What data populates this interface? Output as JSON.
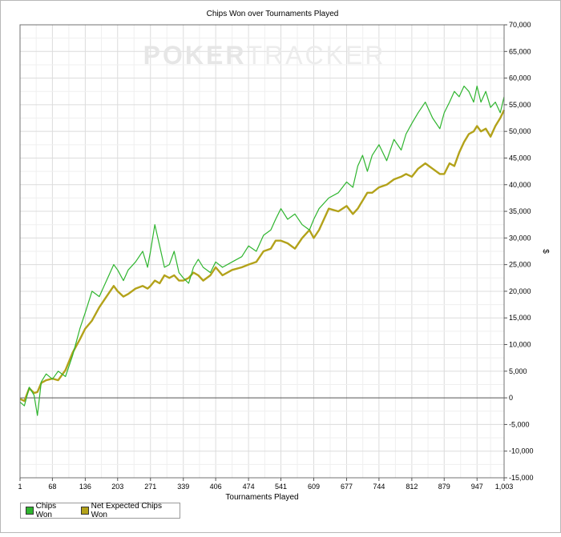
{
  "chart_data": {
    "type": "line",
    "title": "Chips Won over Tournaments Played",
    "xlabel": "Tournaments Played",
    "ylabel": "$",
    "watermark": {
      "part1": "POKER",
      "part2": "TRACKER"
    },
    "xlim": [
      1,
      1003
    ],
    "ylim": [
      -15000,
      70000
    ],
    "x_ticks": [
      1,
      68,
      136,
      203,
      271,
      339,
      406,
      474,
      541,
      609,
      677,
      744,
      812,
      879,
      947,
      1003
    ],
    "x_tick_labels": [
      "1",
      "68",
      "136",
      "203",
      "271",
      "339",
      "406",
      "474",
      "541",
      "609",
      "677",
      "744",
      "812",
      "879",
      "947",
      "1,003"
    ],
    "y_ticks": [
      -15000,
      -10000,
      -5000,
      0,
      5000,
      10000,
      15000,
      20000,
      25000,
      30000,
      35000,
      40000,
      45000,
      50000,
      55000,
      60000,
      65000,
      70000
    ],
    "y_tick_labels": [
      "-15,000",
      "-10,000",
      "-5,000",
      "0",
      "5,000",
      "10,000",
      "15,000",
      "20,000",
      "25,000",
      "30,000",
      "35,000",
      "40,000",
      "45,000",
      "50,000",
      "55,000",
      "60,000",
      "65,000",
      "70,000"
    ],
    "grid": true,
    "legend_position": "bottom-left",
    "series": [
      {
        "name": "Chips Won",
        "color": "#2fb52f",
        "x": [
          1,
          10,
          20,
          30,
          37,
          45,
          55,
          68,
          80,
          95,
          110,
          125,
          136,
          150,
          165,
          180,
          195,
          203,
          215,
          225,
          240,
          255,
          265,
          271,
          280,
          290,
          300,
          310,
          320,
          330,
          339,
          350,
          360,
          370,
          380,
          395,
          406,
          420,
          440,
          460,
          474,
          490,
          505,
          520,
          530,
          541,
          555,
          570,
          585,
          600,
          609,
          620,
          640,
          660,
          677,
          690,
          700,
          710,
          720,
          730,
          744,
          760,
          775,
          790,
          800,
          812,
          825,
          840,
          855,
          870,
          879,
          890,
          900,
          910,
          920,
          930,
          940,
          947,
          955,
          965,
          975,
          985,
          995,
          1003
        ],
        "y": [
          -800,
          -1500,
          2000,
          500,
          -3300,
          3000,
          4500,
          3500,
          5000,
          4000,
          8000,
          13000,
          16000,
          20000,
          19000,
          22000,
          25000,
          24000,
          22000,
          24000,
          25500,
          27500,
          24500,
          27500,
          32500,
          28500,
          24500,
          25000,
          27500,
          23500,
          22500,
          21500,
          24500,
          26000,
          24500,
          23500,
          25500,
          24500,
          25500,
          26500,
          28500,
          27500,
          30500,
          31500,
          33500,
          35500,
          33500,
          34500,
          32500,
          31500,
          33500,
          35500,
          37500,
          38500,
          40500,
          39500,
          43500,
          45500,
          42500,
          45500,
          47500,
          44500,
          48500,
          46500,
          49500,
          51500,
          53500,
          55500,
          52500,
          50500,
          53500,
          55500,
          57500,
          56500,
          58500,
          57500,
          55500,
          58500,
          55500,
          57500,
          54500,
          55500,
          53500,
          56500
        ]
      },
      {
        "name": "Net Expected Chips Won",
        "color": "#b3a21a",
        "x": [
          1,
          10,
          20,
          30,
          37,
          45,
          55,
          68,
          80,
          95,
          110,
          125,
          136,
          150,
          165,
          180,
          195,
          203,
          215,
          225,
          240,
          255,
          265,
          271,
          280,
          290,
          300,
          310,
          320,
          330,
          339,
          350,
          360,
          370,
          380,
          395,
          406,
          420,
          440,
          460,
          474,
          490,
          505,
          520,
          530,
          541,
          555,
          570,
          585,
          600,
          609,
          620,
          640,
          660,
          677,
          690,
          700,
          710,
          720,
          730,
          744,
          760,
          775,
          790,
          800,
          812,
          825,
          840,
          855,
          870,
          879,
          890,
          900,
          910,
          920,
          930,
          940,
          947,
          955,
          965,
          975,
          985,
          995,
          1003
        ],
        "y": [
          -200,
          -600,
          1800,
          900,
          1100,
          2800,
          3300,
          3600,
          3300,
          5200,
          8500,
          11000,
          13000,
          14500,
          17000,
          19000,
          21000,
          20000,
          19000,
          19500,
          20500,
          21000,
          20500,
          21000,
          22000,
          21500,
          23000,
          22500,
          23000,
          22000,
          22000,
          22500,
          23500,
          23000,
          22000,
          23000,
          24500,
          23000,
          24000,
          24500,
          25000,
          25500,
          27500,
          28000,
          29500,
          29500,
          29000,
          28000,
          30000,
          31500,
          30000,
          31500,
          35500,
          35000,
          36000,
          34500,
          35500,
          37000,
          38500,
          38500,
          39500,
          40000,
          41000,
          41500,
          42000,
          41500,
          43000,
          44000,
          43000,
          42000,
          42000,
          44000,
          43500,
          46000,
          48000,
          49500,
          50000,
          51000,
          50000,
          50500,
          49000,
          51000,
          52500,
          54000
        ]
      }
    ]
  }
}
